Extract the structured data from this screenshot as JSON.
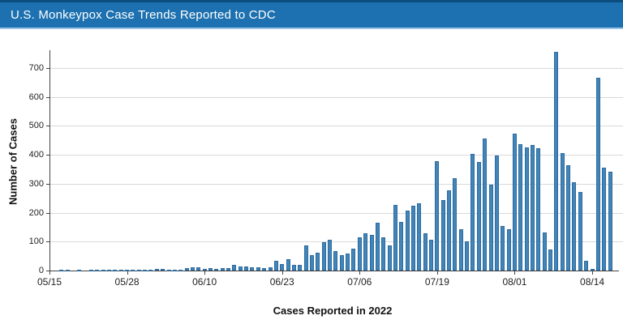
{
  "header": {
    "title": "U.S. Monkeypox Case Trends Reported to CDC",
    "band_color": "#1d71b0",
    "top_strip_color": "#0c4d80",
    "underline_color": "#9fc6e8"
  },
  "chart_data": {
    "type": "bar",
    "title": "U.S. Monkeypox Case Trends Reported to CDC",
    "xlabel": "Cases Reported in 2022",
    "ylabel": "Number of Cases",
    "ylim": [
      0,
      700
    ],
    "grid": true,
    "legend": "none",
    "bar_color": "#4285b8",
    "bar_border_color": "#2d6b9f",
    "y_ticks": [
      0,
      100,
      200,
      300,
      400,
      500,
      600,
      700
    ],
    "x_tick_labels": [
      "05/15",
      "05/28",
      "06/10",
      "06/23",
      "07/06",
      "07/19",
      "08/01",
      "08/14"
    ],
    "x": [
      "05/15",
      "05/16",
      "05/17",
      "05/18",
      "05/19",
      "05/20",
      "05/21",
      "05/22",
      "05/23",
      "05/24",
      "05/25",
      "05/26",
      "05/27",
      "05/28",
      "05/29",
      "05/30",
      "05/31",
      "06/01",
      "06/02",
      "06/03",
      "06/04",
      "06/05",
      "06/06",
      "06/07",
      "06/08",
      "06/09",
      "06/10",
      "06/11",
      "06/12",
      "06/13",
      "06/14",
      "06/15",
      "06/16",
      "06/17",
      "06/18",
      "06/19",
      "06/20",
      "06/21",
      "06/22",
      "06/23",
      "06/24",
      "06/25",
      "06/26",
      "06/27",
      "06/28",
      "06/29",
      "06/30",
      "07/01",
      "07/02",
      "07/03",
      "07/04",
      "07/05",
      "07/06",
      "07/07",
      "07/08",
      "07/09",
      "07/10",
      "07/11",
      "07/12",
      "07/13",
      "07/14",
      "07/15",
      "07/16",
      "07/17",
      "07/18",
      "07/19",
      "07/20",
      "07/21",
      "07/22",
      "07/23",
      "07/24",
      "07/25",
      "07/26",
      "07/27",
      "07/28",
      "07/29",
      "07/30",
      "07/31",
      "08/01",
      "08/02",
      "08/03",
      "08/04",
      "08/05",
      "08/06",
      "08/07",
      "08/08",
      "08/09",
      "08/10",
      "08/11",
      "08/12",
      "08/13",
      "08/14",
      "08/15",
      "08/16",
      "08/17"
    ],
    "values": [
      0,
      0,
      1,
      1,
      0,
      1,
      0,
      1,
      2,
      1,
      1,
      2,
      1,
      1,
      1,
      1,
      4,
      2,
      5,
      5,
      2,
      4,
      3,
      8,
      10,
      12,
      5,
      8,
      6,
      8,
      9,
      19,
      13,
      13,
      11,
      11,
      8,
      12,
      33,
      22,
      39,
      20,
      20,
      88,
      53,
      62,
      97,
      106,
      67,
      53,
      60,
      76,
      114,
      128,
      123,
      165,
      114,
      86,
      226,
      167,
      207,
      223,
      233,
      128,
      106,
      377,
      245,
      277,
      319,
      144,
      102,
      403,
      375,
      457,
      298,
      398,
      153,
      142,
      473,
      436,
      427,
      433,
      422,
      132,
      72,
      755,
      405,
      363,
      305,
      272,
      34,
      5,
      667,
      357,
      343
    ]
  }
}
